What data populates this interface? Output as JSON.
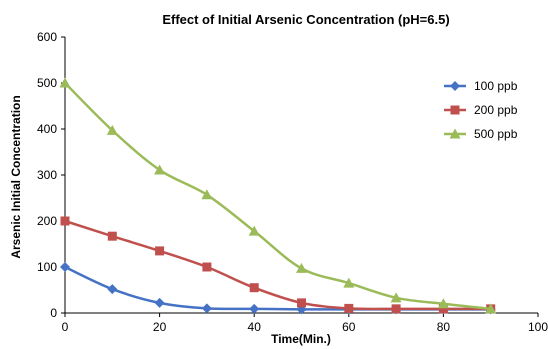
{
  "chart_data": {
    "type": "line",
    "title": "Effect of Initial Arsenic Concentration (pH=6.5)",
    "xlabel": "Time(Min.)",
    "ylabel": "Arsenic Initial Concentration",
    "xlim": [
      0,
      100
    ],
    "ylim": [
      0,
      600
    ],
    "xticks": [
      0,
      20,
      40,
      60,
      80,
      100
    ],
    "yticks": [
      0,
      100,
      200,
      300,
      400,
      500,
      600
    ],
    "grid": false,
    "legend_position": "right",
    "x": [
      0,
      10,
      20,
      30,
      40,
      50,
      60,
      70,
      80,
      90
    ],
    "series": [
      {
        "name": "100 ppb",
        "color": "#4572C4",
        "marker": "diamond",
        "values": [
          100,
          52,
          22,
          10,
          9,
          8,
          8,
          8,
          8,
          8
        ]
      },
      {
        "name": "200 ppb",
        "color": "#C0504D",
        "marker": "square",
        "values": [
          200,
          167,
          135,
          100,
          55,
          22,
          10,
          9,
          9,
          9
        ]
      },
      {
        "name": "500 ppb",
        "color": "#9BBB59",
        "marker": "triangle",
        "values": [
          500,
          397,
          311,
          257,
          178,
          97,
          65,
          33,
          20,
          9
        ]
      }
    ]
  }
}
